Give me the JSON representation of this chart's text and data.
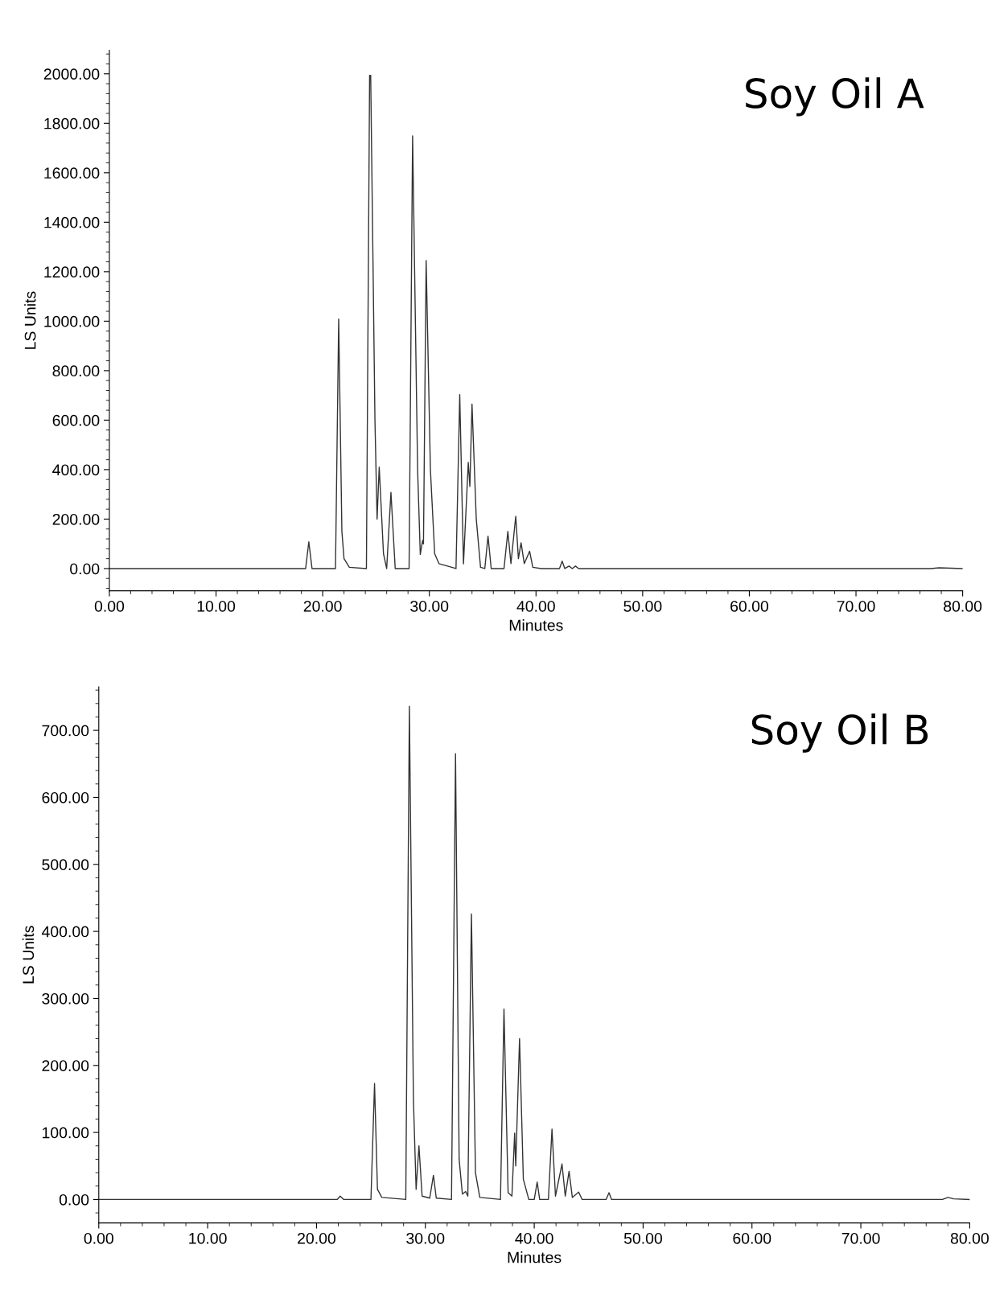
{
  "chart_data": [
    {
      "type": "line",
      "title": "Soy Oil A",
      "xlabel": "Minutes",
      "ylabel": "LS Units",
      "grid": false,
      "legend": false,
      "marker": "none",
      "line_style": "solid",
      "xlim": [
        0,
        80
      ],
      "ylim": [
        -90,
        2095
      ],
      "xticks": [
        {
          "value": 0,
          "label": "0.00"
        },
        {
          "value": 10,
          "label": "10.00"
        },
        {
          "value": 20,
          "label": "20.00"
        },
        {
          "value": 30,
          "label": "30.00"
        },
        {
          "value": 40,
          "label": "40.00"
        },
        {
          "value": 50,
          "label": "50.00"
        },
        {
          "value": 60,
          "label": "60.00"
        },
        {
          "value": 70,
          "label": "70.00"
        },
        {
          "value": 80,
          "label": "80.00"
        }
      ],
      "yticks": [
        {
          "value": 0,
          "label": "0.00"
        },
        {
          "value": 200,
          "label": "200.00"
        },
        {
          "value": 400,
          "label": "400.00"
        },
        {
          "value": 600,
          "label": "600.00"
        },
        {
          "value": 800,
          "label": "800.00"
        },
        {
          "value": 1000,
          "label": "1000.00"
        },
        {
          "value": 1200,
          "label": "1200.00"
        },
        {
          "value": 1400,
          "label": "1400.00"
        },
        {
          "value": 1600,
          "label": "1600.00"
        },
        {
          "value": 1800,
          "label": "1800.00"
        },
        {
          "value": 2000,
          "label": "2000.00"
        }
      ],
      "series": [
        {
          "color": "#333333",
          "x": [
            0,
            18.4,
            18.7,
            19.0,
            21.2,
            21.5,
            21.8,
            22.0,
            22.5,
            24.1,
            24.4,
            24.5,
            24.9,
            25.1,
            25.3,
            25.7,
            26.0,
            26.4,
            26.8,
            28.1,
            28.43,
            28.9,
            29.15,
            29.37,
            29.45,
            29.7,
            30.1,
            30.5,
            30.9,
            32.5,
            32.85,
            33.2,
            33.65,
            33.8,
            34.0,
            34.4,
            34.8,
            35.2,
            35.5,
            35.8,
            37.0,
            37.36,
            37.65,
            38.1,
            38.35,
            38.6,
            38.9,
            39.4,
            39.7,
            40.5,
            42.2,
            42.45,
            42.7,
            43.1,
            43.4,
            43.7,
            44.0,
            77,
            77.8,
            80
          ],
          "values": [
            0,
            0,
            108,
            0,
            0,
            1009,
            150,
            40,
            5,
            0,
            1994,
            1994,
            600,
            200,
            410,
            60,
            0,
            308,
            0,
            0,
            1749,
            400,
            57,
            114,
            100,
            1245,
            400,
            60,
            20,
            0,
            703,
            19,
            429,
            332,
            665,
            200,
            5,
            0,
            131,
            0,
            0,
            150,
            20,
            211,
            40,
            104,
            20,
            70,
            5,
            0,
            0,
            30,
            0,
            10,
            0,
            10,
            0,
            0,
            3,
            0
          ]
        }
      ]
    },
    {
      "type": "line",
      "title": "Soy Oil B",
      "xlabel": "Minutes",
      "ylabel": "LS Units",
      "grid": false,
      "legend": false,
      "marker": "none",
      "line_style": "solid",
      "xlim": [
        0,
        80
      ],
      "ylim": [
        -35,
        765
      ],
      "xticks": [
        {
          "value": 0,
          "label": "0.00"
        },
        {
          "value": 10,
          "label": "10.00"
        },
        {
          "value": 20,
          "label": "20.00"
        },
        {
          "value": 30,
          "label": "30.00"
        },
        {
          "value": 40,
          "label": "40.00"
        },
        {
          "value": 50,
          "label": "50.00"
        },
        {
          "value": 60,
          "label": "60.00"
        },
        {
          "value": 70,
          "label": "70.00"
        },
        {
          "value": 80,
          "label": "80.00"
        }
      ],
      "yticks": [
        {
          "value": 0,
          "label": "0.00"
        },
        {
          "value": 100,
          "label": "100.00"
        },
        {
          "value": 200,
          "label": "200.00"
        },
        {
          "value": 300,
          "label": "300.00"
        },
        {
          "value": 400,
          "label": "400.00"
        },
        {
          "value": 500,
          "label": "500.00"
        },
        {
          "value": 600,
          "label": "600.00"
        },
        {
          "value": 700,
          "label": "700.00"
        }
      ],
      "series": [
        {
          "color": "#333333",
          "x": [
            0,
            21.9,
            22.17,
            22.5,
            25.0,
            25.33,
            25.6,
            26.0,
            28.2,
            28.53,
            28.9,
            29.15,
            29.41,
            29.7,
            30.4,
            30.74,
            31.0,
            32.4,
            32.77,
            33.1,
            33.4,
            33.7,
            33.9,
            34.23,
            34.6,
            35.0,
            36.9,
            37.22,
            37.6,
            37.95,
            38.2,
            38.3,
            38.65,
            39.0,
            39.5,
            40.0,
            40.27,
            40.5,
            41.3,
            41.63,
            41.95,
            42.55,
            42.85,
            43.2,
            43.5,
            44.08,
            44.4,
            46.6,
            46.87,
            47.1,
            77.5,
            78.0,
            78.5,
            80
          ],
          "values": [
            0,
            0,
            5,
            0,
            0,
            173,
            15,
            3,
            0,
            736,
            150,
            15,
            80,
            5,
            2,
            36,
            2,
            0,
            665,
            60,
            8,
            12,
            5,
            426,
            40,
            3,
            0,
            284,
            10,
            5,
            99,
            50,
            240,
            30,
            0,
            0,
            26,
            0,
            0,
            105,
            5,
            53,
            5,
            42,
            3,
            11,
            0,
            0,
            10,
            0,
            0,
            3,
            1,
            0
          ]
        }
      ]
    }
  ]
}
